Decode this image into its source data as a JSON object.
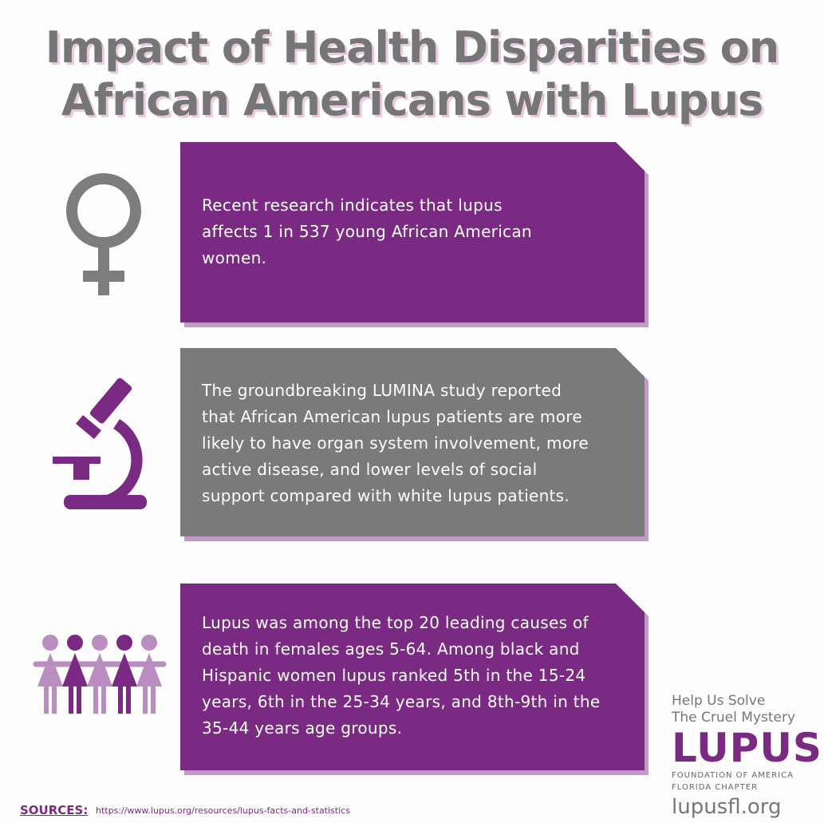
{
  "title": [
    "Impact of Health Disparities on",
    "African Americans with Lupus"
  ],
  "cards": [
    {
      "lines": [
        "Recent research indicates that lupus",
        "affects 1 in 537 young African American",
        "women."
      ]
    },
    {
      "lines": [
        "The groundbreaking LUMINA study reported",
        "that African American lupus patients are more",
        "likely to have organ system involvement, more",
        "active disease, and lower levels of social",
        "support compared with white lupus patients."
      ]
    },
    {
      "lines": [
        "Lupus was among the top 20 leading causes of",
        "death in females ages 5-64. Among black and",
        "Hispanic women lupus ranked 5th in the 15-24",
        "years, 6th in the 25-34 years, and 8th-9th in the",
        "35-44 years age groups."
      ]
    }
  ],
  "sources": {
    "label": "SOURCES:",
    "url": "https://www.lupus.org/resources/lupus-facts-and-statistics"
  },
  "logo": {
    "tagline": [
      "Help Us Solve",
      "The Cruel Mystery"
    ],
    "name": "LUPUS",
    "org": [
      "FOUNDATION OF AMERICA",
      "FLORIDA CHAPTER"
    ],
    "site": "lupusfl.org"
  }
}
